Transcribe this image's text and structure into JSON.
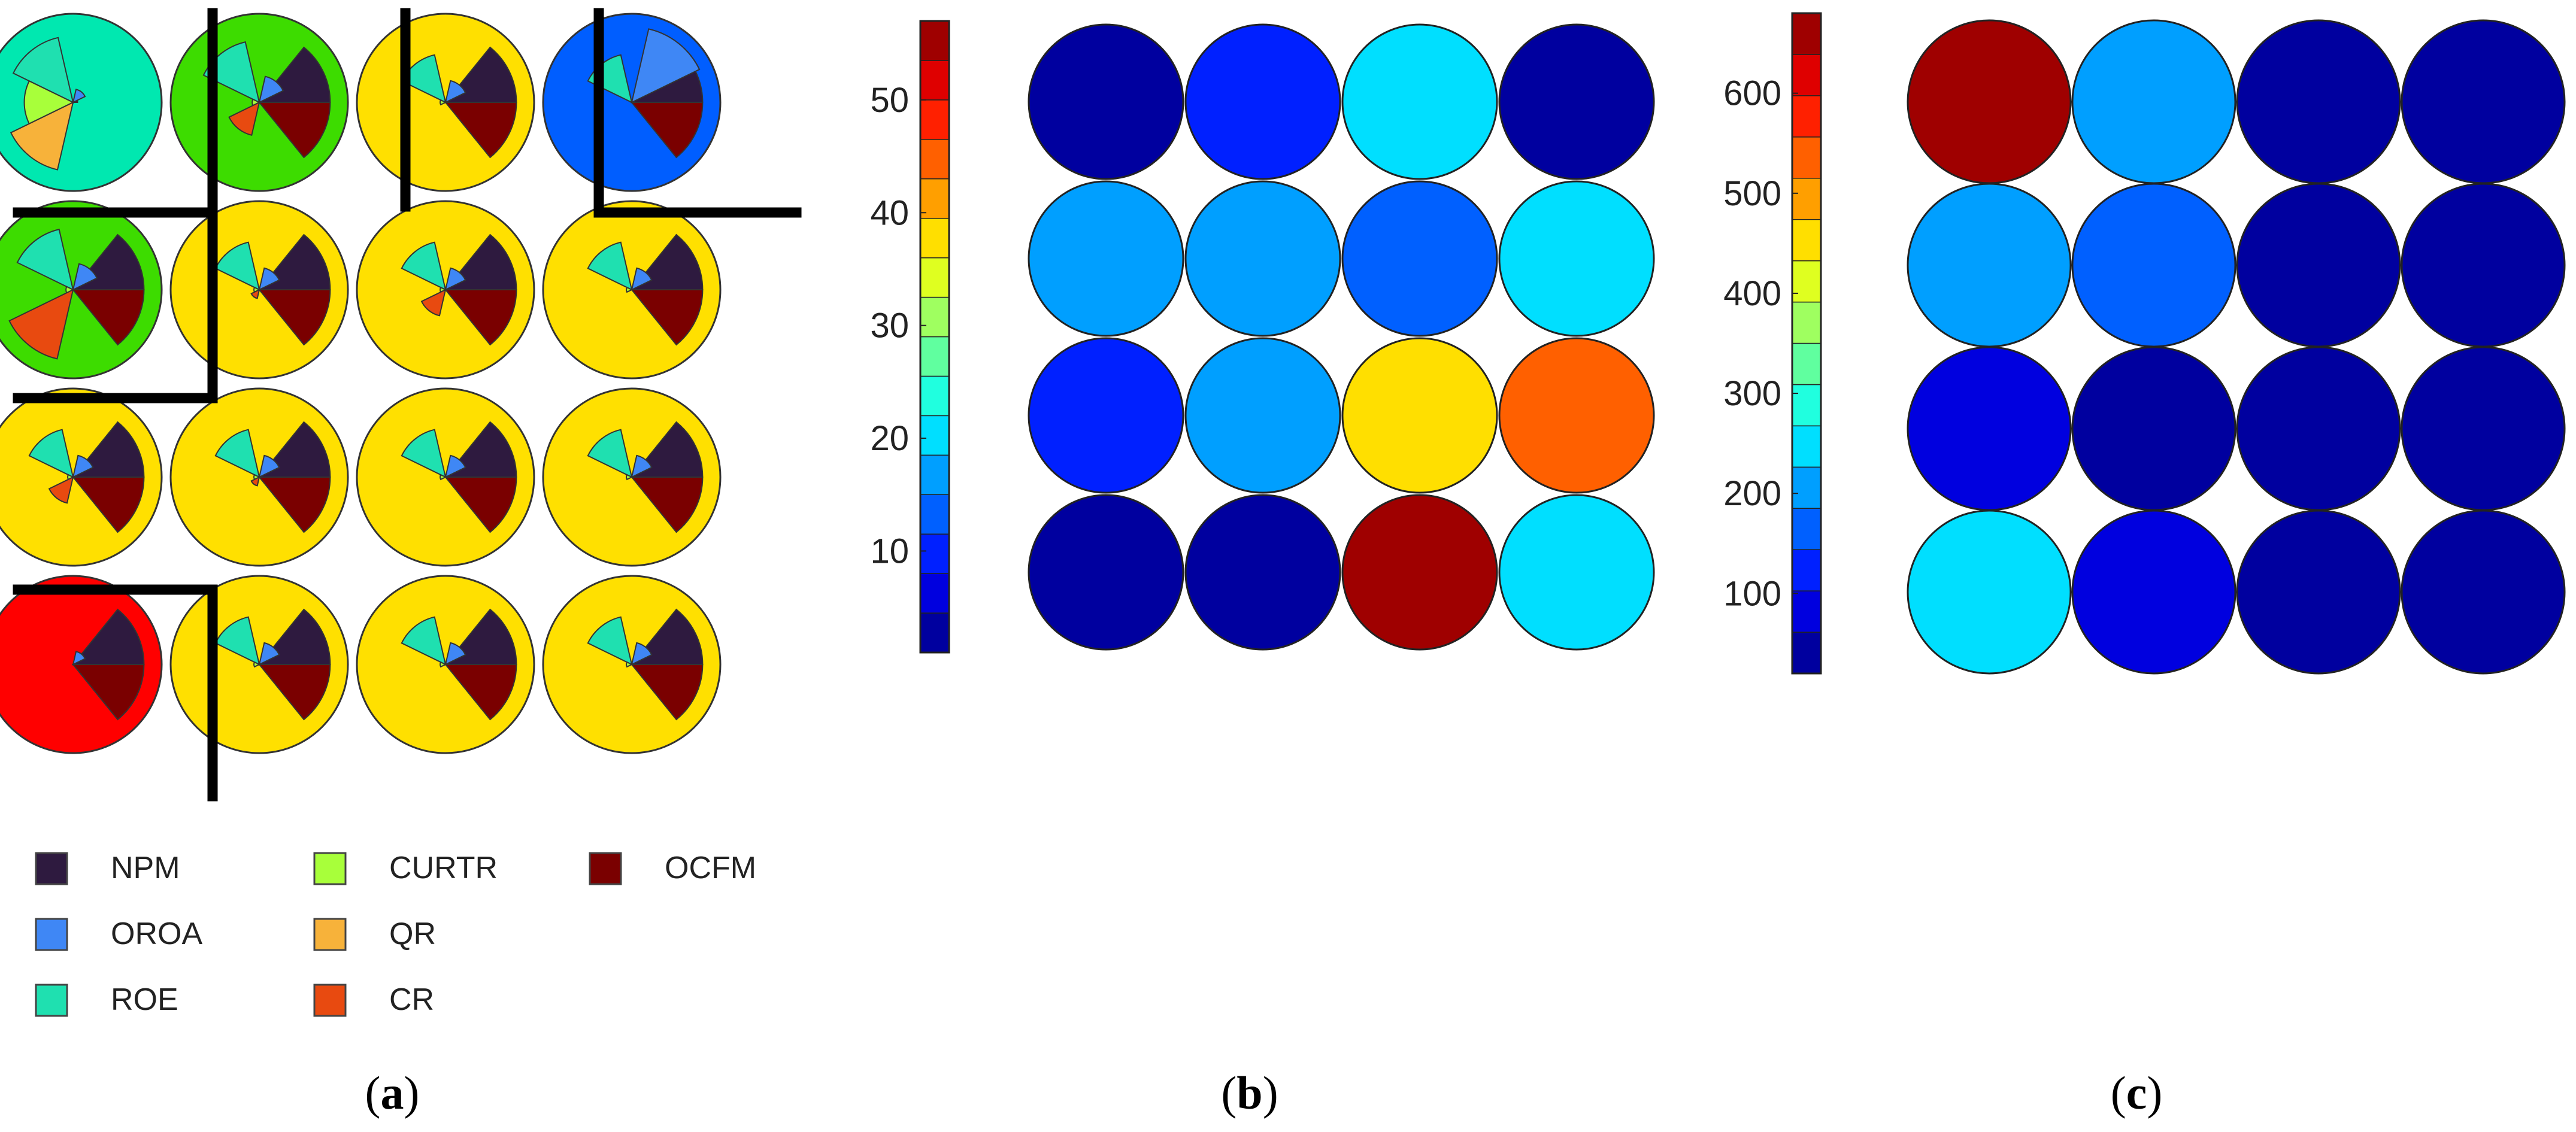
{
  "colors": {
    "neuron_blue": "#005eff",
    "neuron_green": "#3ddc00",
    "neuron_yellow": "#ffe000",
    "neuron_red": "#ff0000",
    "neuron_teal": "#00e8b0",
    "outline": "#333333",
    "cluster_border": "#000000"
  },
  "panels": {
    "a": {
      "caption": "(a)",
      "letter": "a",
      "legend": [
        {
          "key": "NPM",
          "label": "NPM",
          "color": "#2e1a3f"
        },
        {
          "key": "CURTR",
          "label": "CURTR",
          "color": "#a8ff3a"
        },
        {
          "key": "OCFM",
          "label": "OCFM",
          "color": "#7a0000"
        },
        {
          "key": "OROA",
          "label": "OROA",
          "color": "#3f87f5"
        },
        {
          "key": "QR",
          "label": "QR",
          "color": "#f7b23a"
        },
        {
          "key": "ROE",
          "label": "ROE",
          "color": "#1fe0b0"
        },
        {
          "key": "CR",
          "label": "CR",
          "color": "#e84a10"
        }
      ]
    },
    "b": {
      "caption": "(b)",
      "letter": "b",
      "colorbar_ticks": [
        "10",
        "20",
        "30",
        "40",
        "50"
      ]
    },
    "c": {
      "caption": "(c)",
      "letter": "c",
      "colorbar_ticks": [
        "100",
        "200",
        "300",
        "400",
        "500",
        "600"
      ]
    }
  },
  "chart_data": [
    {
      "panel": "a",
      "type": "som-fan-diagram",
      "grid": [
        4,
        4
      ],
      "variables": [
        "ROE",
        "CURTR",
        "QR",
        "OROA",
        "NPM",
        "OCFM",
        "CR"
      ],
      "neuron_background": [
        [
          "teal",
          "green",
          "yellow",
          "blue"
        ],
        [
          "green",
          "yellow",
          "yellow",
          "yellow"
        ],
        [
          "yellow",
          "yellow",
          "yellow",
          "yellow"
        ],
        [
          "red",
          "yellow",
          "yellow",
          "yellow"
        ]
      ],
      "fan_values": [
        [
          [
            0.75,
            0.55,
            0.78,
            0.15,
            0.05,
            0,
            0
          ],
          [
            0.7,
            0.08,
            0,
            0.3,
            0.8,
            0.8,
            0.38
          ],
          [
            0.55,
            0.06,
            0,
            0.25,
            0.8,
            0.8,
            0
          ],
          [
            0.55,
            0,
            0,
            0.85,
            0.8,
            0.8,
            0
          ]
        ],
        [
          [
            0.7,
            0.08,
            0,
            0.3,
            0.8,
            0.8,
            0.8
          ],
          [
            0.55,
            0.06,
            0,
            0.25,
            0.8,
            0.8,
            0.1
          ],
          [
            0.55,
            0.06,
            0,
            0.25,
            0.8,
            0.8,
            0.3
          ],
          [
            0.55,
            0.06,
            0,
            0.25,
            0.8,
            0.8,
            0
          ]
        ],
        [
          [
            0.55,
            0.06,
            0,
            0.25,
            0.8,
            0.8,
            0.3
          ],
          [
            0.55,
            0.06,
            0,
            0.25,
            0.8,
            0.8,
            0.1
          ],
          [
            0.55,
            0.06,
            0,
            0.25,
            0.8,
            0.8,
            0
          ],
          [
            0.55,
            0.06,
            0,
            0.25,
            0.8,
            0.8,
            0
          ]
        ],
        [
          [
            0,
            0,
            0,
            0.15,
            0.8,
            0.8,
            0
          ],
          [
            0.55,
            0.06,
            0,
            0.25,
            0.8,
            0.8,
            0
          ],
          [
            0.55,
            0.06,
            0,
            0.25,
            0.8,
            0.8,
            0
          ],
          [
            0.55,
            0.06,
            0,
            0.25,
            0.8,
            0.8,
            0
          ]
        ]
      ]
    },
    {
      "panel": "b",
      "type": "heatmap",
      "grid": [
        4,
        4
      ],
      "colorbar": {
        "ticks": [
          10,
          20,
          30,
          40,
          50
        ],
        "range": [
          1,
          57
        ],
        "levels": 16
      },
      "values": [
        [
          3,
          9,
          20,
          3
        ],
        [
          15,
          15,
          14,
          20
        ],
        [
          8,
          15,
          38,
          43
        ],
        [
          3,
          3,
          57,
          20
        ]
      ]
    },
    {
      "panel": "c",
      "type": "heatmap",
      "grid": [
        4,
        4
      ],
      "colorbar": {
        "ticks": [
          100,
          200,
          300,
          400,
          500,
          600
        ],
        "range": [
          20,
          680
        ],
        "levels": 16
      },
      "values": [
        [
          680,
          220,
          40,
          40
        ],
        [
          215,
          150,
          40,
          40
        ],
        [
          90,
          40,
          40,
          40
        ],
        [
          235,
          90,
          40,
          40
        ]
      ]
    }
  ]
}
